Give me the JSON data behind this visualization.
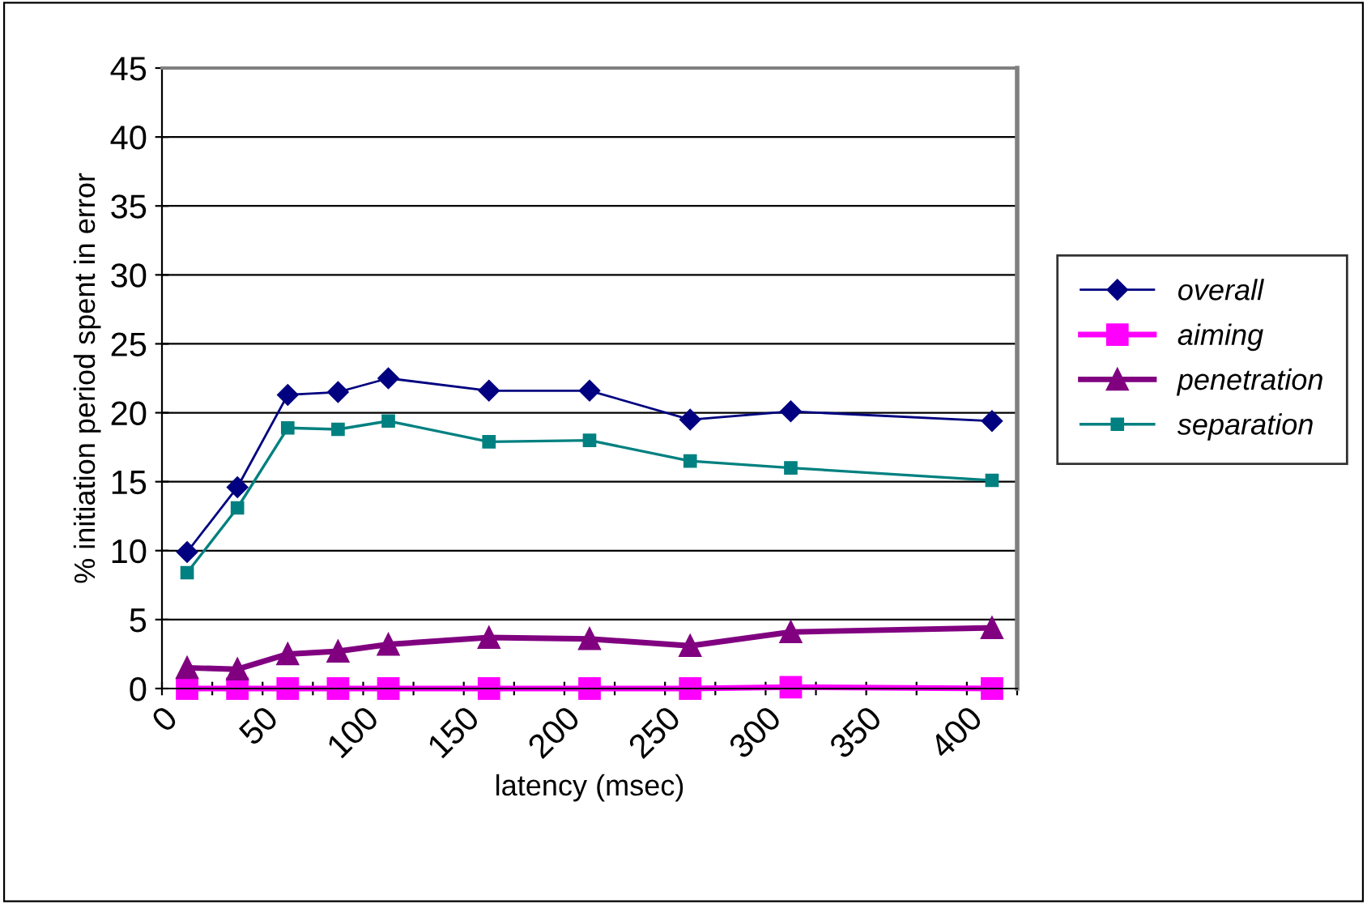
{
  "chart_data": {
    "type": "line",
    "xlabel": "latency (msec)",
    "ylabel": "% initiation period spent in error",
    "x": [
      12.5,
      37.5,
      62.5,
      87.5,
      112.5,
      162.5,
      212.5,
      262.5,
      312.5,
      412.5
    ],
    "series": [
      {
        "name": "overall",
        "color": "#000080",
        "marker": "diamond",
        "values": [
          9.9,
          14.6,
          21.3,
          21.5,
          22.5,
          21.6,
          21.6,
          19.5,
          20.1,
          19.4
        ]
      },
      {
        "name": "aiming",
        "color": "#ff00ff",
        "marker": "square",
        "values": [
          0,
          0,
          0,
          0,
          0,
          0,
          0,
          0,
          0.1,
          0
        ]
      },
      {
        "name": "penetration",
        "color": "#800080",
        "marker": "triangle",
        "values": [
          1.5,
          1.4,
          2.5,
          2.7,
          3.2,
          3.7,
          3.6,
          3.1,
          4.1,
          4.4
        ]
      },
      {
        "name": "separation",
        "color": "#008080",
        "marker": "square",
        "values": [
          8.4,
          13.1,
          18.9,
          18.8,
          19.4,
          17.9,
          18.0,
          16.5,
          16.0,
          15.1
        ]
      }
    ],
    "xlim": [
      0,
      425
    ],
    "xticks": [
      0,
      {
        "value": 25,
        "label": null
      },
      50,
      {
        "value": 75,
        "label": null
      },
      100,
      {
        "value": 125,
        "label": null
      },
      150,
      {
        "value": 175,
        "label": null
      },
      200,
      {
        "value": 225,
        "label": null
      },
      250,
      {
        "value": 275,
        "label": null
      },
      300,
      {
        "value": 325,
        "label": null
      },
      350,
      {
        "value": 375,
        "label": null
      },
      400,
      {
        "value": 425,
        "label": null
      }
    ],
    "ylim": [
      0,
      45
    ],
    "yticks": [
      0,
      5,
      10,
      15,
      20,
      25,
      30,
      35,
      40,
      45
    ],
    "grid": "y",
    "legend": "right"
  }
}
